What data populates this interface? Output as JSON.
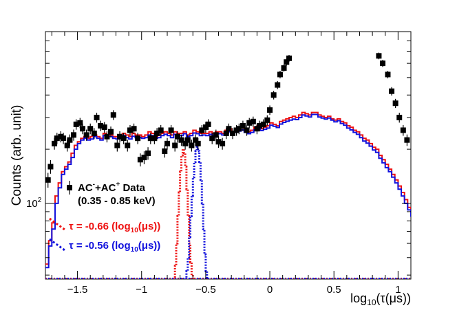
{
  "chart_data": {
    "type": "histogram-with-markers",
    "ylabel": "Counts (arb. unit)",
    "xlabel_base": "log",
    "xlabel_sub": "10",
    "xlabel_arg": "(τ(μs))",
    "xlim": [
      -1.75,
      1.1
    ],
    "ylog": true,
    "y_display_range": [
      38,
      900
    ],
    "x_ticks": [
      {
        "value": -1.5,
        "label": "−1.5"
      },
      {
        "value": -1.0,
        "label": "−1"
      },
      {
        "value": -0.5,
        "label": "−0.5"
      },
      {
        "value": 0.0,
        "label": "0"
      },
      {
        "value": 0.5,
        "label": "0.5"
      },
      {
        "value": 1.0,
        "label": "1"
      }
    ],
    "y_ticks": [
      {
        "value": 100,
        "label": "10",
        "exp": "2"
      }
    ],
    "legend": {
      "data": {
        "text_a": "AC",
        "sup_a": "-",
        "text_b": "+AC",
        "sup_b": "+",
        "text_c": " Data",
        "range": "(0.35 - 0.85 keV)",
        "color": "#000000"
      },
      "red": {
        "pre": "τ = -0.66 (log",
        "sub": "10",
        "post": "(μs))",
        "color": "#ee1111"
      },
      "blue": {
        "pre": "τ = -0.56 (log",
        "sub": "10",
        "post": "(μs))",
        "color": "#1111dd"
      }
    },
    "series": [
      {
        "name": "Data",
        "color": "#000000",
        "x": [
          -1.73,
          -1.71,
          -1.68,
          -1.66,
          -1.63,
          -1.61,
          -1.58,
          -1.56,
          -1.53,
          -1.51,
          -1.48,
          -1.46,
          -1.43,
          -1.4,
          -1.37,
          -1.35,
          -1.32,
          -1.29,
          -1.27,
          -1.24,
          -1.22,
          -1.19,
          -1.17,
          -1.14,
          -1.11,
          -1.09,
          -1.06,
          -1.03,
          -1.01,
          -0.98,
          -0.95,
          -0.93,
          -0.9,
          -0.88,
          -0.85,
          -0.82,
          -0.8,
          -0.77,
          -0.74,
          -0.72,
          -0.69,
          -0.66,
          -0.64,
          -0.61,
          -0.58,
          -0.56,
          -0.53,
          -0.5,
          -0.48,
          -0.45,
          -0.42,
          -0.4,
          -0.37,
          -0.34,
          -0.32,
          -0.29,
          -0.26,
          -0.24,
          -0.21,
          -0.18,
          -0.16,
          -0.13,
          -0.1,
          -0.08,
          -0.05,
          -0.02,
          0.0,
          0.03,
          0.06,
          0.08,
          0.11,
          0.13,
          0.15,
          0.85,
          0.88,
          0.92,
          0.95,
          0.98,
          1.01,
          1.04,
          1.07
        ],
        "y": [
          135,
          160,
          215,
          230,
          235,
          230,
          210,
          225,
          240,
          275,
          280,
          260,
          240,
          260,
          245,
          300,
          270,
          265,
          235,
          250,
          310,
          210,
          235,
          230,
          210,
          255,
          260,
          230,
          175,
          180,
          190,
          230,
          230,
          245,
          255,
          195,
          215,
          255,
          210,
          235,
          225,
          215,
          225,
          210,
          225,
          215,
          255,
          265,
          275,
          230,
          240,
          220,
          215,
          245,
          260,
          245,
          255,
          260,
          270,
          255,
          280,
          285,
          260,
          270,
          275,
          290,
          330,
          400,
          455,
          520,
          565,
          610,
          640,
          660,
          600,
          520,
          420,
          360,
          300,
          255,
          225
        ]
      },
      {
        "name": "tau=-0.66",
        "color": "#ee1111",
        "x_start": -1.75,
        "x_step": 0.025,
        "y": [
          46,
          62,
          78,
          110,
          130,
          150,
          160,
          170,
          190,
          210,
          220,
          230,
          235,
          230,
          235,
          240,
          235,
          230,
          245,
          240,
          240,
          235,
          235,
          240,
          245,
          240,
          235,
          245,
          240,
          240,
          235,
          240,
          250,
          245,
          235,
          240,
          245,
          250,
          245,
          240,
          250,
          245,
          245,
          250,
          240,
          245,
          255,
          250,
          245,
          245,
          245,
          250,
          245,
          250,
          250,
          245,
          255,
          260,
          250,
          255,
          260,
          265,
          255,
          250,
          255,
          265,
          270,
          260,
          265,
          270,
          280,
          275,
          270,
          285,
          290,
          295,
          300,
          305,
          300,
          310,
          320,
          315,
          310,
          320,
          320,
          310,
          305,
          300,
          305,
          295,
          290,
          295,
          285,
          280,
          270,
          265,
          255,
          250,
          240,
          230,
          225,
          215,
          205,
          200,
          185,
          175,
          165,
          155,
          145,
          135,
          125,
          115,
          105,
          95,
          88,
          80,
          74,
          66,
          61,
          56,
          52,
          48,
          45,
          43,
          41,
          39,
          38
        ]
      },
      {
        "name": "tau=-0.56",
        "color": "#1111dd",
        "x_start": -1.75,
        "x_step": 0.025,
        "y": [
          44,
          58,
          72,
          100,
          122,
          145,
          155,
          165,
          180,
          200,
          215,
          225,
          230,
          225,
          228,
          235,
          230,
          225,
          238,
          235,
          235,
          230,
          228,
          232,
          238,
          232,
          228,
          236,
          232,
          232,
          230,
          232,
          240,
          238,
          230,
          232,
          238,
          242,
          238,
          232,
          242,
          238,
          238,
          244,
          235,
          238,
          246,
          244,
          238,
          240,
          238,
          242,
          240,
          244,
          244,
          240,
          246,
          250,
          244,
          248,
          252,
          256,
          248,
          244,
          248,
          256,
          262,
          254,
          258,
          262,
          272,
          268,
          264,
          276,
          282,
          286,
          290,
          294,
          292,
          300,
          310,
          306,
          302,
          312,
          312,
          302,
          298,
          294,
          298,
          290,
          284,
          288,
          278,
          272,
          262,
          256,
          248,
          242,
          232,
          222,
          216,
          208,
          198,
          192,
          178,
          168,
          158,
          150,
          140,
          130,
          120,
          110,
          100,
          92,
          85,
          78,
          72,
          65,
          60,
          55,
          51,
          47,
          44,
          42,
          40,
          39,
          38
        ]
      },
      {
        "name": "peak-red",
        "color": "#ee1111",
        "x": [
          -0.75,
          -0.74,
          -0.73,
          -0.72,
          -0.71,
          -0.7,
          -0.69,
          -0.68,
          -0.67,
          -0.66,
          -0.65,
          -0.64,
          -0.63,
          -0.62,
          -0.61,
          -0.6,
          -0.59
        ],
        "y": [
          38,
          45,
          60,
          85,
          115,
          150,
          185,
          200,
          190,
          160,
          120,
          85,
          60,
          47,
          40,
          38,
          38
        ]
      },
      {
        "name": "peak-blue",
        "color": "#1111dd",
        "x": [
          -0.66,
          -0.65,
          -0.64,
          -0.63,
          -0.62,
          -0.61,
          -0.6,
          -0.59,
          -0.58,
          -0.57,
          -0.56,
          -0.55,
          -0.54,
          -0.53,
          -0.52,
          -0.51,
          -0.5,
          -0.49,
          -0.48
        ],
        "y": [
          38,
          42,
          50,
          65,
          85,
          110,
          140,
          170,
          195,
          205,
          195,
          170,
          135,
          100,
          72,
          52,
          42,
          38,
          38
        ]
      }
    ]
  }
}
